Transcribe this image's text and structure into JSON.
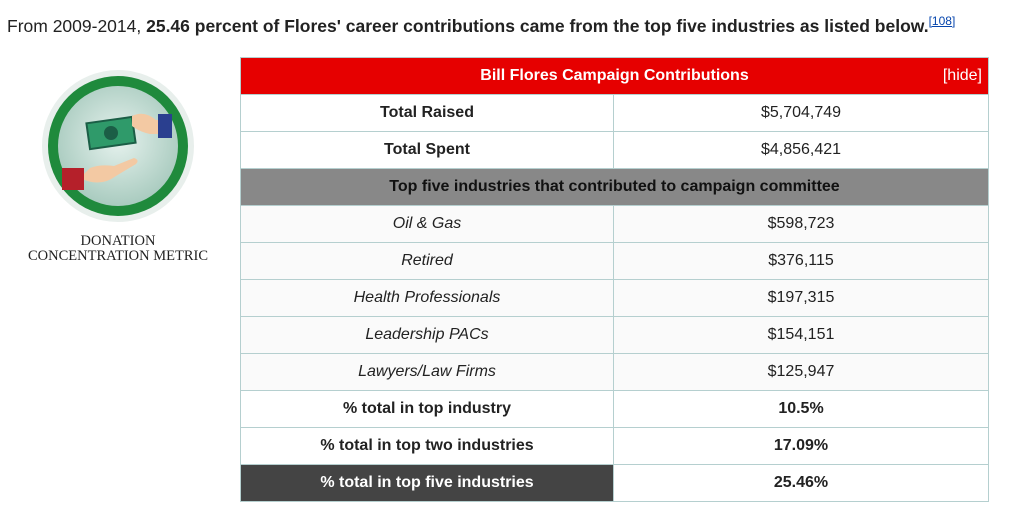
{
  "intro": {
    "lead": "From 2009-2014, ",
    "bold": "25.46 percent of Flores' career contributions came from the top five industries as listed below.",
    "footnote": "[108]"
  },
  "badge": {
    "line1": "DONATION",
    "line2": "CONCENTRATION METRIC"
  },
  "table": {
    "title": "Bill Flores Campaign Contributions",
    "toggle": "[hide]",
    "totals": [
      [
        "Total Raised",
        "$5,704,749"
      ],
      [
        "Total Spent",
        "$4,856,421"
      ]
    ],
    "industries_heading": "Top five industries that contributed to campaign committee",
    "industries": [
      [
        "Oil & Gas",
        "$598,723"
      ],
      [
        "Retired",
        "$376,115"
      ],
      [
        "Health Professionals",
        "$197,315"
      ],
      [
        "Leadership PACs",
        "$154,151"
      ],
      [
        "Lawyers/Law Firms",
        "$125,947"
      ]
    ],
    "shares": [
      [
        "% total in top industry",
        "10.5%"
      ],
      [
        "% total in top two industries",
        "17.09%"
      ],
      [
        "% total in top five industries",
        "25.46%"
      ]
    ]
  }
}
